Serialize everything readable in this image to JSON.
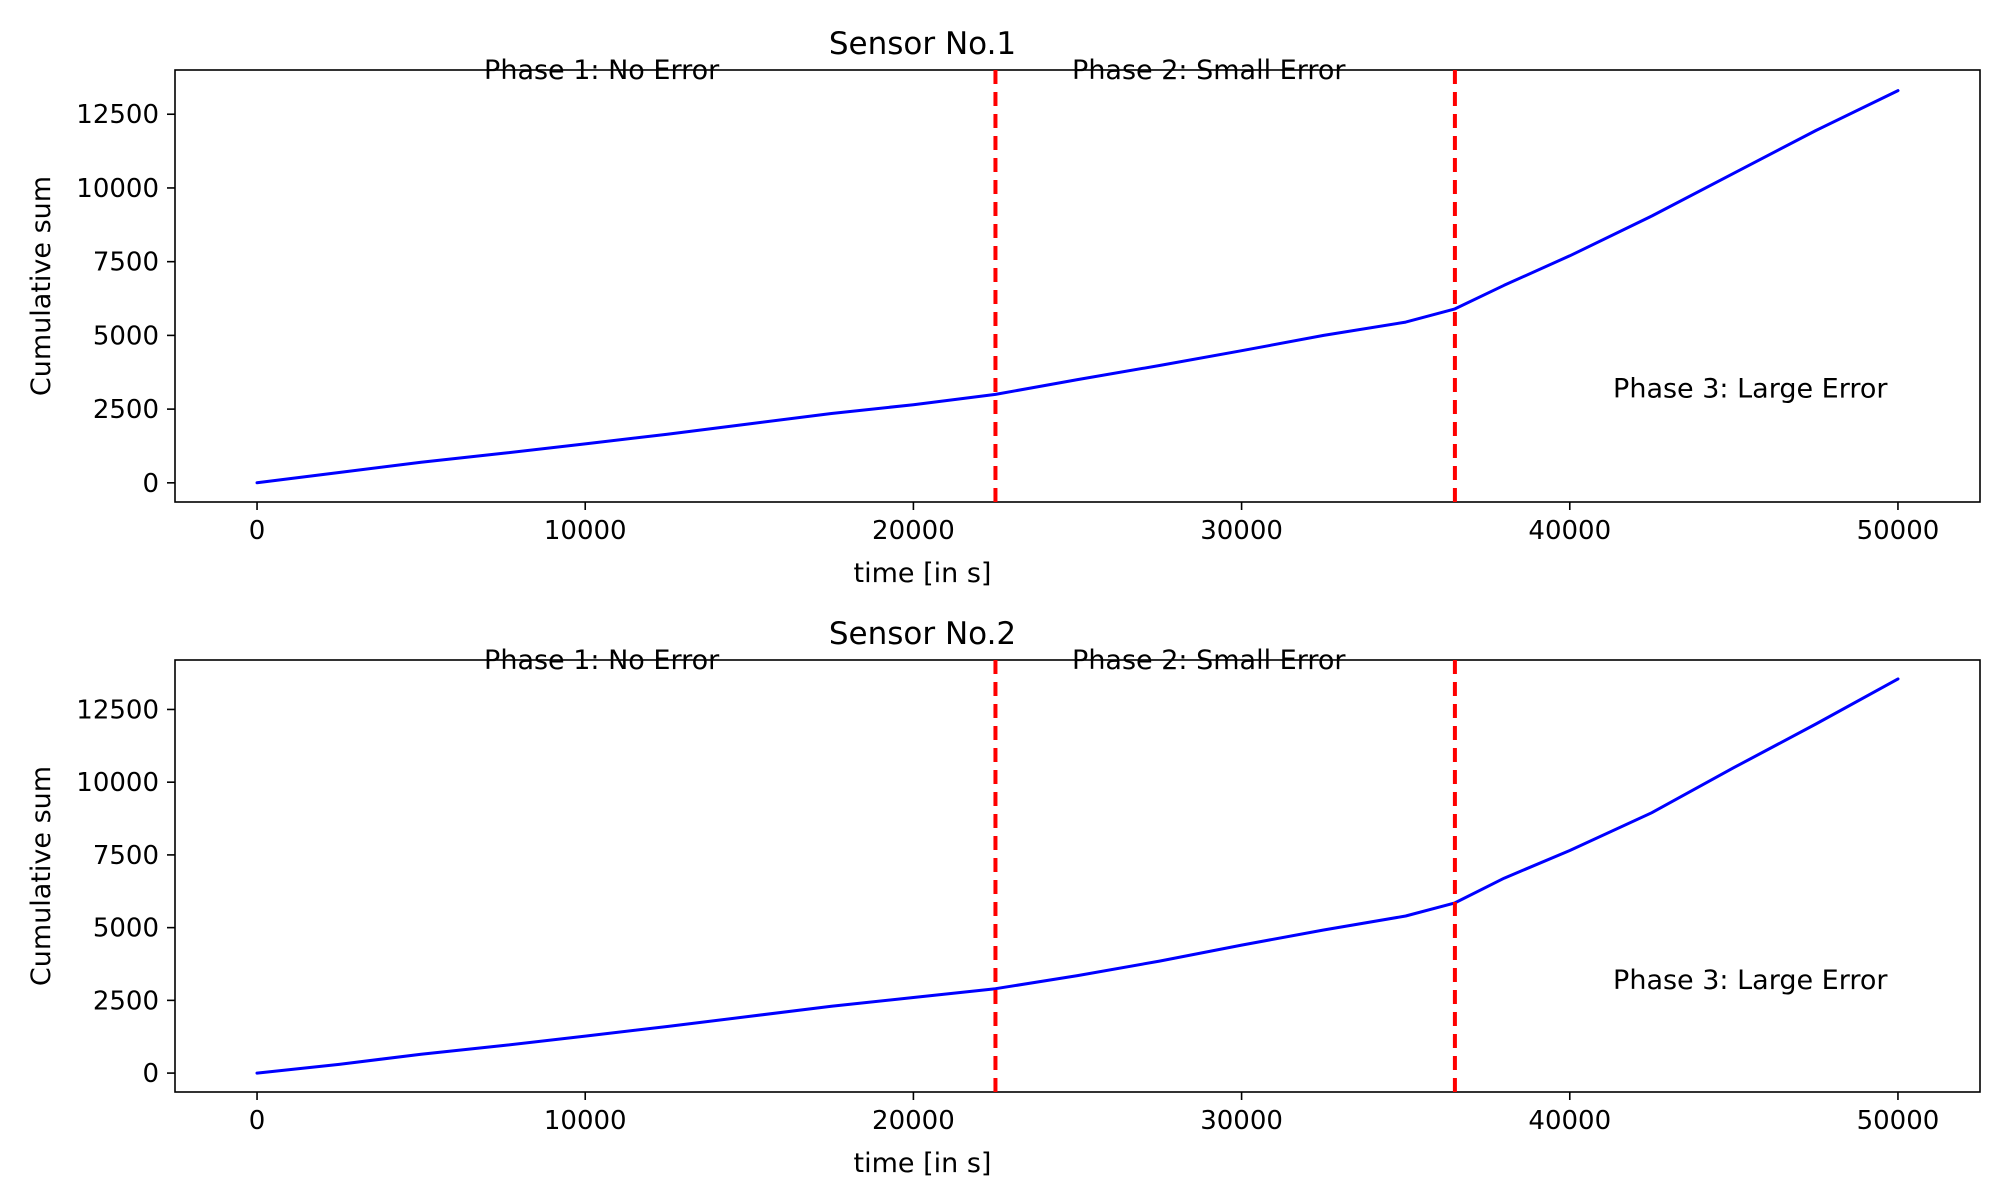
{
  "chart_data": [
    {
      "type": "line",
      "title": "Sensor No.1",
      "xlabel": "time [in s]",
      "ylabel": "Cumulative sum",
      "xlim": [
        -2500,
        52500
      ],
      "ylim": [
        -650,
        14000
      ],
      "xticks": [
        0,
        10000,
        20000,
        30000,
        40000,
        50000
      ],
      "yticks": [
        0,
        2500,
        5000,
        7500,
        10000,
        12500
      ],
      "grid": false,
      "line_color": "#0000ff",
      "vline_color": "#ff0000",
      "vlines": [
        22500,
        36500
      ],
      "annotations": [
        {
          "text": "Phase 1: No Error",
          "x": 10500,
          "y": 14000
        },
        {
          "text": "Phase 2: Small Error",
          "x": 29000,
          "y": 14000
        },
        {
          "text": "Phase 3: Large Error",
          "x": 45500,
          "y": 3200
        }
      ],
      "series": [
        {
          "x": [
            0,
            2500,
            5000,
            7500,
            10000,
            12500,
            15000,
            17500,
            20000,
            22500,
            25000,
            27500,
            30000,
            32500,
            35000,
            36500,
            38000,
            40000,
            42500,
            45000,
            47500,
            50000
          ],
          "values": [
            0,
            350,
            700,
            1000,
            1320,
            1650,
            2000,
            2350,
            2650,
            3000,
            3500,
            3980,
            4480,
            5000,
            5450,
            5900,
            6700,
            7700,
            9050,
            10500,
            11950,
            13300
          ]
        }
      ]
    },
    {
      "type": "line",
      "title": "Sensor No.2",
      "xlabel": "time [in s]",
      "ylabel": "Cumulative sum",
      "xlim": [
        -2500,
        52500
      ],
      "ylim": [
        -650,
        14200
      ],
      "xticks": [
        0,
        10000,
        20000,
        30000,
        40000,
        50000
      ],
      "yticks": [
        0,
        2500,
        5000,
        7500,
        10000,
        12500
      ],
      "grid": false,
      "line_color": "#0000ff",
      "vline_color": "#ff0000",
      "vlines": [
        22500,
        36500
      ],
      "annotations": [
        {
          "text": "Phase 1: No Error",
          "x": 10500,
          "y": 14200
        },
        {
          "text": "Phase 2: Small Error",
          "x": 29000,
          "y": 14200
        },
        {
          "text": "Phase 3: Large Error",
          "x": 45500,
          "y": 3200
        }
      ],
      "series": [
        {
          "x": [
            0,
            2500,
            5000,
            7500,
            10000,
            12500,
            15000,
            17500,
            20000,
            22500,
            25000,
            27500,
            30000,
            32500,
            35000,
            36500,
            38000,
            40000,
            42500,
            45000,
            47500,
            50000
          ],
          "values": [
            0,
            300,
            650,
            950,
            1270,
            1600,
            1950,
            2300,
            2600,
            2900,
            3350,
            3850,
            4400,
            4920,
            5400,
            5850,
            6700,
            7650,
            8950,
            10500,
            12000,
            13550
          ]
        }
      ]
    }
  ]
}
